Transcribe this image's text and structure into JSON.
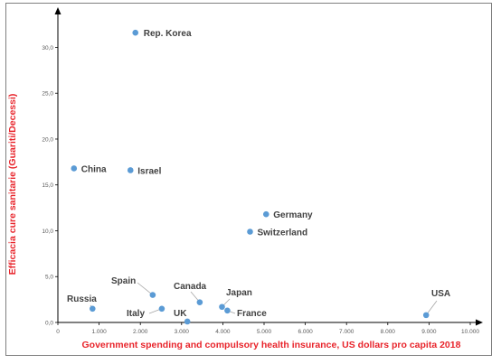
{
  "chart_data": {
    "type": "scatter",
    "title": "",
    "xlabel": "Government spending and compulsory health insurance, US dollars pro capita 2018",
    "ylabel": "Efficacia cure sanitarie (Guariti/Decessi)",
    "xlim": [
      0,
      10000
    ],
    "ylim": [
      0,
      33
    ],
    "grid": false,
    "legend": "none",
    "x_ticks": [
      "0",
      "1.000",
      "2.000",
      "3.000",
      "4.000",
      "5.000",
      "6.000",
      "7.000",
      "8.000",
      "9.000",
      "10.000"
    ],
    "y_ticks": [
      "0,0",
      "5,0",
      "10,0",
      "15,0",
      "20,0",
      "25,0",
      "30,0"
    ],
    "points": [
      {
        "label": "Rep. Korea",
        "x": 1880,
        "y": 31.6
      },
      {
        "label": "China",
        "x": 390,
        "y": 16.8
      },
      {
        "label": "Israel",
        "x": 1760,
        "y": 16.6
      },
      {
        "label": "Germany",
        "x": 5050,
        "y": 11.8
      },
      {
        "label": "Switzerland",
        "x": 4660,
        "y": 9.9
      },
      {
        "label": "Spain",
        "x": 2300,
        "y": 3.0
      },
      {
        "label": "Canada",
        "x": 3440,
        "y": 2.2
      },
      {
        "label": "Russia",
        "x": 840,
        "y": 1.5
      },
      {
        "label": "Italy",
        "x": 2520,
        "y": 1.5
      },
      {
        "label": "Japan",
        "x": 3980,
        "y": 1.7
      },
      {
        "label": "France",
        "x": 4110,
        "y": 1.3
      },
      {
        "label": "UK",
        "x": 3140,
        "y": 0.1
      },
      {
        "label": "USA",
        "x": 8930,
        "y": 0.8
      }
    ],
    "marker_color": "#5b9bd5",
    "axis_label_color": "#e8242b"
  }
}
